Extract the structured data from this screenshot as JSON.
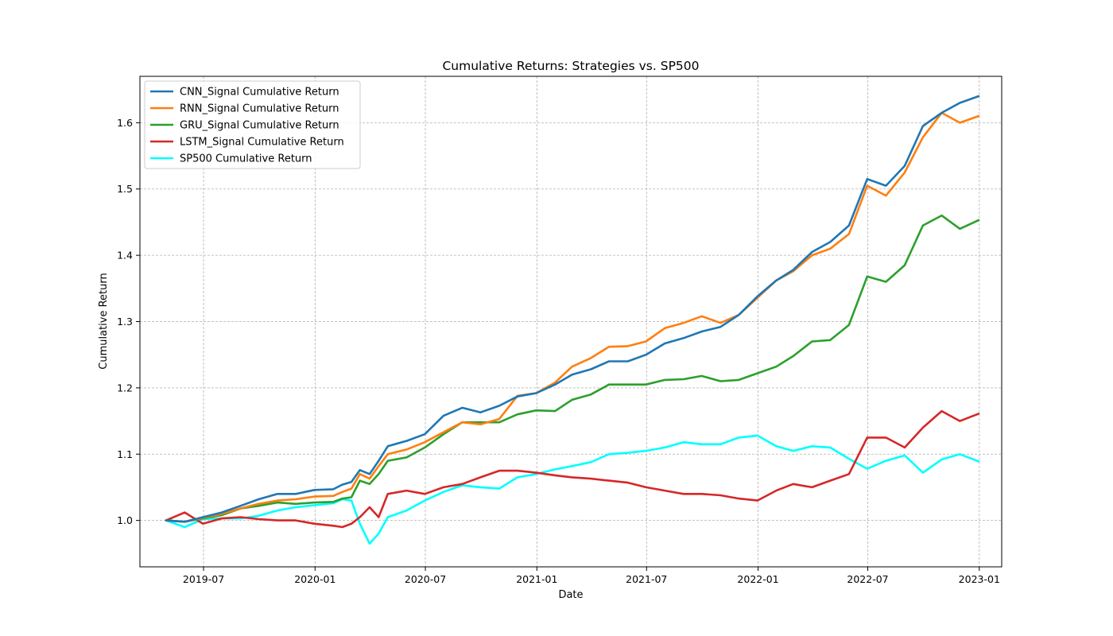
{
  "chart_data": {
    "type": "line",
    "title": "Cumulative Returns: Strategies vs. SP500",
    "xlabel": "Date",
    "ylabel": "Cumulative Return",
    "x_tick_labels": [
      "2019-07",
      "2020-01",
      "2020-07",
      "2021-01",
      "2021-07",
      "2022-01",
      "2022-07",
      "2023-01"
    ],
    "y_tick_labels": [
      "1.0",
      "1.1",
      "1.2",
      "1.3",
      "1.4",
      "1.5",
      "1.6"
    ],
    "ylim": [
      0.93,
      1.67
    ],
    "xlim": [
      "2019-03-18",
      "2023-02-07"
    ],
    "grid": true,
    "legend_position": "upper-left",
    "dates": [
      "2019-04-30",
      "2019-05-31",
      "2019-06-30",
      "2019-07-31",
      "2019-08-31",
      "2019-09-30",
      "2019-10-31",
      "2019-11-30",
      "2019-12-31",
      "2020-01-31",
      "2020-02-15",
      "2020-03-01",
      "2020-03-15",
      "2020-03-31",
      "2020-04-15",
      "2020-04-30",
      "2020-05-31",
      "2020-06-30",
      "2020-07-31",
      "2020-08-31",
      "2020-09-30",
      "2020-10-31",
      "2020-11-30",
      "2020-12-31",
      "2021-01-31",
      "2021-02-28",
      "2021-03-31",
      "2021-04-30",
      "2021-05-31",
      "2021-06-30",
      "2021-07-31",
      "2021-08-31",
      "2021-09-30",
      "2021-10-31",
      "2021-11-30",
      "2021-12-31",
      "2022-01-31",
      "2022-02-28",
      "2022-03-31",
      "2022-04-30",
      "2022-05-31",
      "2022-06-30",
      "2022-07-31",
      "2022-08-31",
      "2022-09-30",
      "2022-10-31",
      "2022-11-30",
      "2022-12-31"
    ],
    "series": [
      {
        "name": "CNN_Signal Cumulative Return",
        "color": "#1f77b4",
        "values": [
          1.0,
          0.998,
          1.005,
          1.012,
          1.022,
          1.032,
          1.04,
          1.04,
          1.046,
          1.047,
          1.054,
          1.058,
          1.076,
          1.07,
          1.09,
          1.112,
          1.12,
          1.13,
          1.158,
          1.17,
          1.163,
          1.173,
          1.187,
          1.192,
          1.205,
          1.22,
          1.228,
          1.24,
          1.24,
          1.25,
          1.267,
          1.275,
          1.285,
          1.292,
          1.31,
          1.338,
          1.362,
          1.378,
          1.405,
          1.42,
          1.445,
          1.515,
          1.505,
          1.535,
          1.595,
          1.615,
          1.63,
          1.64
        ]
      },
      {
        "name": "RNN_Signal Cumulative Return",
        "color": "#ff7f0e",
        "values": [
          1.0,
          0.998,
          1.004,
          1.01,
          1.018,
          1.025,
          1.03,
          1.032,
          1.036,
          1.037,
          1.043,
          1.048,
          1.07,
          1.063,
          1.082,
          1.1,
          1.107,
          1.118,
          1.133,
          1.148,
          1.145,
          1.153,
          1.188,
          1.192,
          1.208,
          1.232,
          1.245,
          1.262,
          1.263,
          1.27,
          1.29,
          1.298,
          1.308,
          1.298,
          1.31,
          1.336,
          1.362,
          1.376,
          1.4,
          1.41,
          1.432,
          1.505,
          1.49,
          1.525,
          1.578,
          1.615,
          1.6,
          1.61
        ]
      },
      {
        "name": "GRU_Signal Cumulative Return",
        "color": "#2ca02c",
        "values": [
          1.0,
          0.998,
          1.003,
          1.008,
          1.018,
          1.022,
          1.027,
          1.025,
          1.027,
          1.028,
          1.033,
          1.035,
          1.06,
          1.055,
          1.07,
          1.09,
          1.095,
          1.11,
          1.13,
          1.148,
          1.148,
          1.148,
          1.16,
          1.166,
          1.165,
          1.182,
          1.19,
          1.205,
          1.205,
          1.205,
          1.212,
          1.213,
          1.218,
          1.21,
          1.212,
          1.222,
          1.232,
          1.248,
          1.27,
          1.272,
          1.295,
          1.368,
          1.36,
          1.385,
          1.445,
          1.46,
          1.44,
          1.453
        ]
      },
      {
        "name": "LSTM_Signal Cumulative Return",
        "color": "#d62728",
        "values": [
          1.0,
          1.012,
          0.995,
          1.003,
          1.005,
          1.002,
          1.0,
          1.0,
          0.995,
          0.992,
          0.99,
          0.995,
          1.005,
          1.02,
          1.005,
          1.04,
          1.045,
          1.04,
          1.05,
          1.055,
          1.065,
          1.075,
          1.075,
          1.072,
          1.068,
          1.065,
          1.063,
          1.06,
          1.057,
          1.05,
          1.045,
          1.04,
          1.04,
          1.038,
          1.033,
          1.03,
          1.045,
          1.055,
          1.05,
          1.06,
          1.07,
          1.125,
          1.125,
          1.11,
          1.14,
          1.165,
          1.15,
          1.161
        ]
      },
      {
        "name": "SP500 Cumulative Return",
        "color": "#00ffff",
        "values": [
          1.0,
          0.99,
          1.002,
          1.003,
          1.003,
          1.007,
          1.015,
          1.02,
          1.023,
          1.026,
          1.032,
          1.03,
          0.995,
          0.965,
          0.98,
          1.005,
          1.015,
          1.03,
          1.043,
          1.053,
          1.05,
          1.048,
          1.065,
          1.07,
          1.077,
          1.082,
          1.088,
          1.1,
          1.102,
          1.105,
          1.11,
          1.118,
          1.115,
          1.115,
          1.125,
          1.128,
          1.112,
          1.105,
          1.112,
          1.11,
          1.093,
          1.078,
          1.09,
          1.098,
          1.072,
          1.092,
          1.1,
          1.089
        ]
      }
    ]
  }
}
